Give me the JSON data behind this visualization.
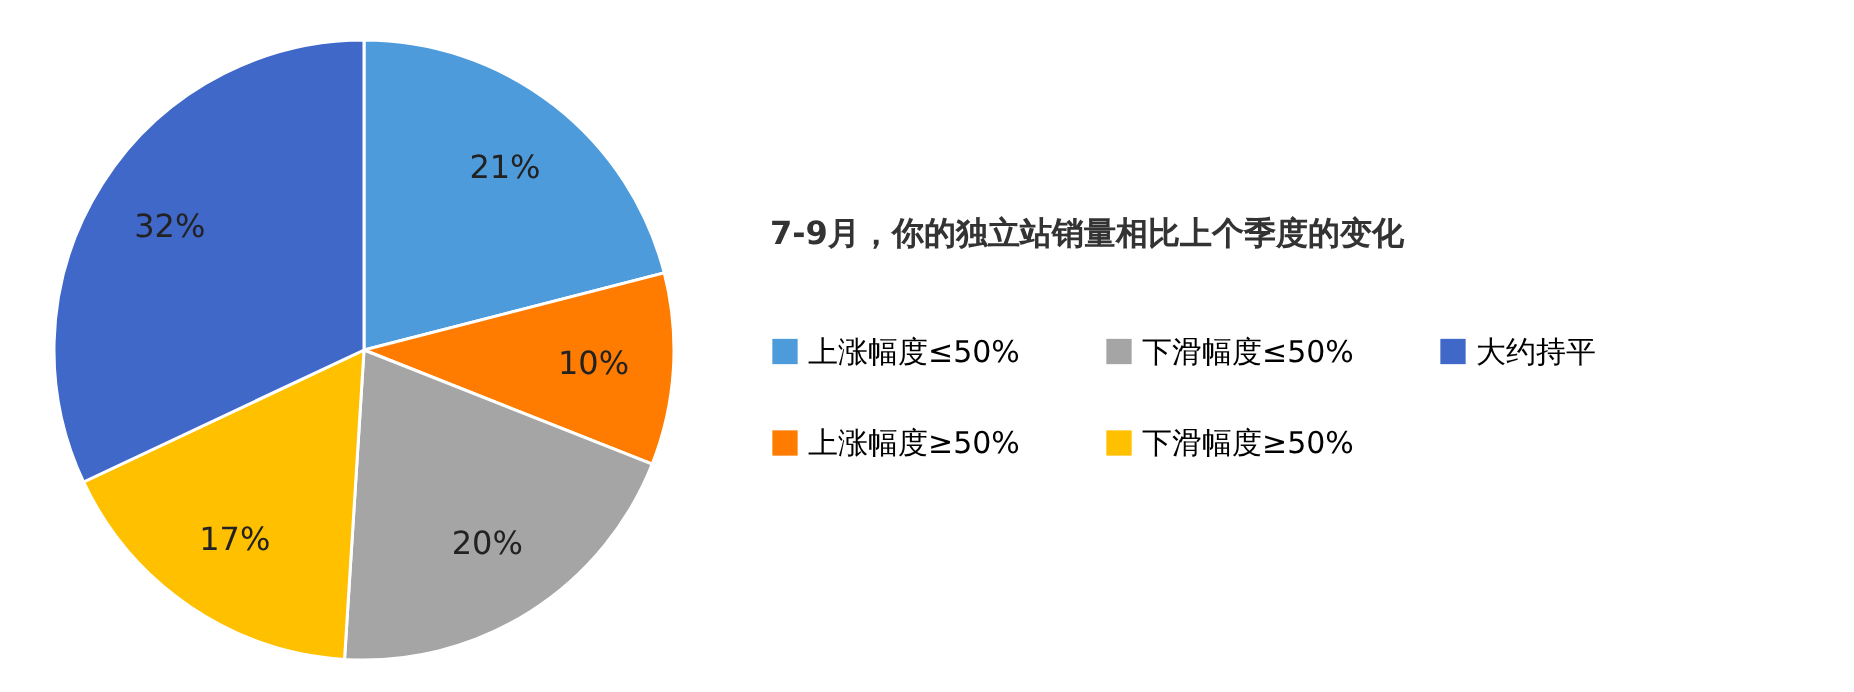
{
  "chart_data": {
    "type": "pie",
    "title": "7-9月，你的独立站销量相比上个季度的变化",
    "categories": [
      "上涨幅度≤50%",
      "上涨幅度≥50%",
      "下滑幅度≤50%",
      "下滑幅度≥50%",
      "大约持平"
    ],
    "values": [
      21,
      10,
      20,
      17,
      32
    ],
    "value_labels": [
      "21%",
      "10%",
      "20%",
      "17%",
      "32%"
    ],
    "colors": [
      "#4e9bdc",
      "#ff7c00",
      "#a5a5a5",
      "#ffc000",
      "#4068c8"
    ],
    "legend": "right"
  }
}
